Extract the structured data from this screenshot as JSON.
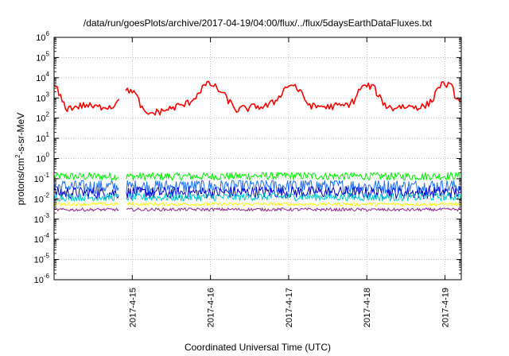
{
  "chart_data": {
    "type": "line",
    "title": "/data/run/goesPlots/archive/2017-04-19/04:00/flux/../flux/5daysEarthDataFluxes.txt",
    "xlabel": "Coordinated Universal Time (UTC)",
    "ylabel": {
      "prefix": "protons/cm",
      "superscript": "2",
      "suffix": "-s-sr-MeV"
    },
    "y_scale": "log",
    "y_range_exponents": [
      -6,
      6
    ],
    "y_tick_base": "10",
    "y_tick_exponents": [
      "-6",
      "-5",
      "-4",
      "-3",
      "-2",
      "-1",
      "0",
      "1",
      "2",
      "3",
      "4",
      "5",
      "6"
    ],
    "x_range": [
      "2017-04-14 00:00",
      "2017-04-19 05:00"
    ],
    "x_ticks": [
      {
        "label": "2017-4-15",
        "value": "2017-04-15 00:00"
      },
      {
        "label": "2017-4-16",
        "value": "2017-04-16 00:00"
      },
      {
        "label": "2017-4-17",
        "value": "2017-04-17 00:00"
      },
      {
        "label": "2017-4-18",
        "value": "2017-04-18 00:00"
      },
      {
        "label": "2017-4-19",
        "value": "2017-04-19 00:00"
      }
    ],
    "grid": true,
    "legend": "none",
    "data_gap": [
      "2017-04-14 20:00",
      "2017-04-14 22:00"
    ],
    "series": [
      {
        "color": "#ff0000",
        "points": [
          [
            "2017-04-14 00:00",
            4000
          ],
          [
            "2017-04-14 01:00",
            2500
          ],
          [
            "2017-04-14 02:00",
            1000
          ],
          [
            "2017-04-14 03:00",
            500
          ],
          [
            "2017-04-14 04:00",
            300
          ],
          [
            "2017-04-14 06:00",
            350
          ],
          [
            "2017-04-14 08:00",
            400
          ],
          [
            "2017-04-14 10:00",
            450
          ],
          [
            "2017-04-14 12:00",
            350
          ],
          [
            "2017-04-14 14:00",
            350
          ],
          [
            "2017-04-14 16:00",
            400
          ],
          [
            "2017-04-14 18:00",
            350
          ],
          [
            "2017-04-14 20:00",
            1200
          ],
          [
            "2017-04-14 22:00",
            2000
          ],
          [
            "2017-04-15 00:00",
            2500
          ],
          [
            "2017-04-15 01:00",
            1500
          ],
          [
            "2017-04-15 02:00",
            700
          ],
          [
            "2017-04-15 03:00",
            300
          ],
          [
            "2017-04-15 04:00",
            150
          ],
          [
            "2017-04-15 06:00",
            180
          ],
          [
            "2017-04-15 08:00",
            200
          ],
          [
            "2017-04-15 10:00",
            250
          ],
          [
            "2017-04-15 12:00",
            300
          ],
          [
            "2017-04-15 14:00",
            400
          ],
          [
            "2017-04-15 16:00",
            450
          ],
          [
            "2017-04-15 18:00",
            700
          ],
          [
            "2017-04-15 20:00",
            1500
          ],
          [
            "2017-04-15 22:00",
            4000
          ],
          [
            "2017-04-16 00:00",
            5000
          ],
          [
            "2017-04-16 02:00",
            3000
          ],
          [
            "2017-04-16 04:00",
            1500
          ],
          [
            "2017-04-16 06:00",
            600
          ],
          [
            "2017-04-16 08:00",
            250
          ],
          [
            "2017-04-16 10:00",
            300
          ],
          [
            "2017-04-16 12:00",
            300
          ],
          [
            "2017-04-16 14:00",
            400
          ],
          [
            "2017-04-16 16:00",
            350
          ],
          [
            "2017-04-16 18:00",
            450
          ],
          [
            "2017-04-16 20:00",
            700
          ],
          [
            "2017-04-16 22:00",
            2000
          ],
          [
            "2017-04-17 00:00",
            4500
          ],
          [
            "2017-04-17 02:00",
            4000
          ],
          [
            "2017-04-17 04:00",
            1500
          ],
          [
            "2017-04-17 06:00",
            500
          ],
          [
            "2017-04-17 08:00",
            350
          ],
          [
            "2017-04-17 10:00",
            400
          ],
          [
            "2017-04-17 12:00",
            350
          ],
          [
            "2017-04-17 14:00",
            400
          ],
          [
            "2017-04-17 16:00",
            400
          ],
          [
            "2017-04-17 18:00",
            450
          ],
          [
            "2017-04-17 20:00",
            700
          ],
          [
            "2017-04-17 22:00",
            3000
          ],
          [
            "2017-04-18 00:00",
            4000
          ],
          [
            "2017-04-18 02:00",
            3500
          ],
          [
            "2017-04-18 04:00",
            1000
          ],
          [
            "2017-04-18 06:00",
            400
          ],
          [
            "2017-04-18 08:00",
            300
          ],
          [
            "2017-04-18 10:00",
            400
          ],
          [
            "2017-04-18 12:00",
            350
          ],
          [
            "2017-04-18 14:00",
            400
          ],
          [
            "2017-04-18 16:00",
            350
          ],
          [
            "2017-04-18 18:00",
            400
          ],
          [
            "2017-04-18 20:00",
            700
          ],
          [
            "2017-04-18 22:00",
            4000
          ],
          [
            "2017-04-19 00:00",
            5000
          ],
          [
            "2017-04-19 02:00",
            3500
          ],
          [
            "2017-04-19 03:00",
            1500
          ],
          [
            "2017-04-19 04:00",
            800
          ],
          [
            "2017-04-19 05:00",
            500
          ]
        ]
      },
      {
        "color": "#00ee00",
        "points": [
          [
            "2017-04-14 00:00",
            0.13
          ],
          [
            "2017-04-15 12:00",
            0.13
          ],
          [
            "2017-04-17 00:00",
            0.14
          ],
          [
            "2017-04-18 12:00",
            0.13
          ],
          [
            "2017-04-19 05:00",
            0.14
          ]
        ],
        "band": [
          0.08,
          0.2
        ]
      },
      {
        "color": "#1e6fff",
        "points": [
          [
            "2017-04-14 00:00",
            0.04
          ],
          [
            "2017-04-15 12:00",
            0.04
          ],
          [
            "2017-04-17 00:00",
            0.045
          ],
          [
            "2017-04-18 12:00",
            0.04
          ],
          [
            "2017-04-19 05:00",
            0.045
          ]
        ],
        "band": [
          0.015,
          0.08
        ]
      },
      {
        "color": "#0000cc",
        "points": [
          [
            "2017-04-14 00:00",
            0.02
          ],
          [
            "2017-04-15 12:00",
            0.02
          ],
          [
            "2017-04-17 00:00",
            0.022
          ],
          [
            "2017-04-18 12:00",
            0.02
          ],
          [
            "2017-04-19 05:00",
            0.022
          ]
        ],
        "band": [
          0.01,
          0.04
        ]
      },
      {
        "color": "#00c8c8",
        "points": [
          [
            "2017-04-14 00:00",
            0.012
          ],
          [
            "2017-04-15 12:00",
            0.012
          ],
          [
            "2017-04-17 00:00",
            0.013
          ],
          [
            "2017-04-18 12:00",
            0.012
          ],
          [
            "2017-04-19 05:00",
            0.013
          ]
        ],
        "band": [
          0.008,
          0.02
        ]
      },
      {
        "color": "#ffff00",
        "points": [
          [
            "2017-04-14 00:00",
            0.0055
          ],
          [
            "2017-04-15 12:00",
            0.0055
          ],
          [
            "2017-04-17 00:00",
            0.0055
          ],
          [
            "2017-04-18 12:00",
            0.0055
          ],
          [
            "2017-04-19 05:00",
            0.0055
          ]
        ],
        "band": [
          0.0045,
          0.0065
        ]
      },
      {
        "color": "#8b2a8b",
        "points": [
          [
            "2017-04-14 00:00",
            0.0029
          ],
          [
            "2017-04-15 12:00",
            0.003
          ],
          [
            "2017-04-17 00:00",
            0.003
          ],
          [
            "2017-04-18 12:00",
            0.0029
          ],
          [
            "2017-04-19 05:00",
            0.003
          ]
        ],
        "band": [
          0.0025,
          0.0036
        ]
      }
    ]
  }
}
